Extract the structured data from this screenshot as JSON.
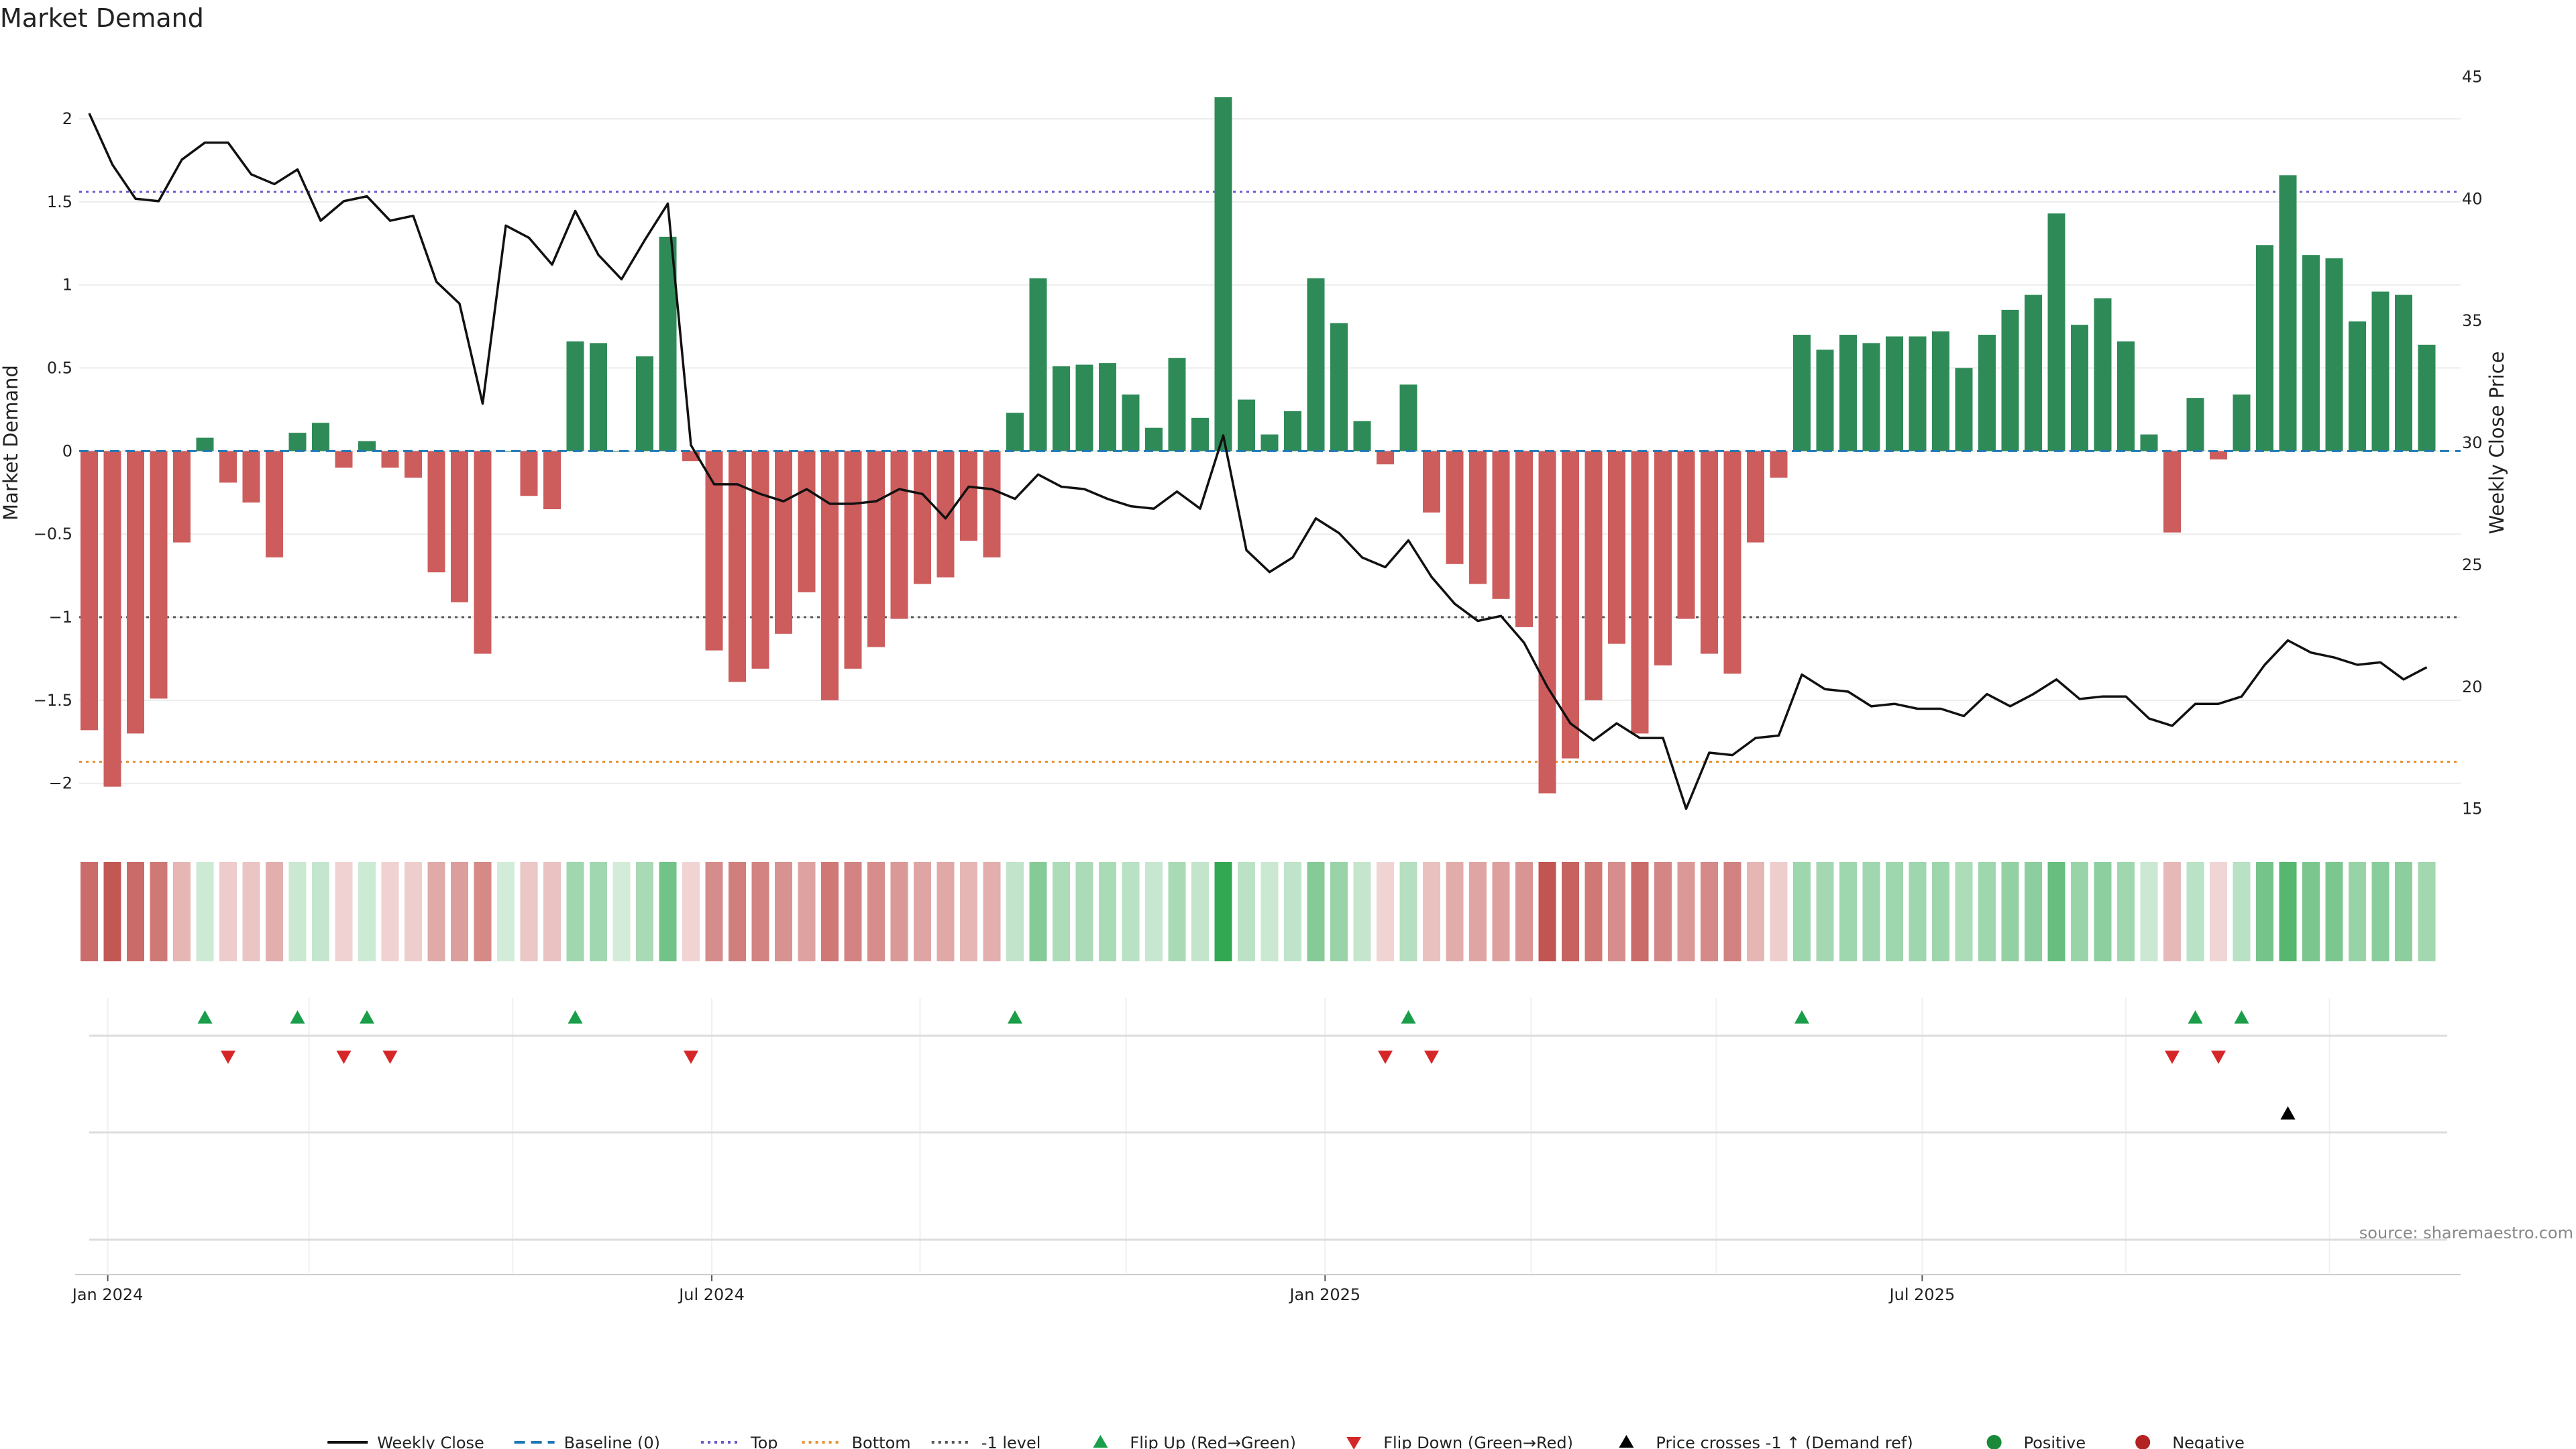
{
  "chart_data": {
    "type": "bar",
    "title": "Market Demand",
    "ylabel_left": "Market Demand",
    "ylabel_right": "Weekly Close Price",
    "ylim_left": [
      -2.3,
      2.4
    ],
    "ylim_right": [
      14,
      46
    ],
    "yticks_left": [
      2,
      1.5,
      1,
      0.5,
      0,
      -0.5,
      -1,
      -1.5,
      -2
    ],
    "yticks_left_labels": [
      "2",
      "1.5",
      "1",
      "0.5",
      "0",
      "−0.5",
      "−1",
      "−1.5",
      "−2"
    ],
    "yticks_right": [
      45,
      40,
      35,
      30,
      25,
      20,
      15
    ],
    "yticks_right_labels": [
      "45",
      "40",
      "35",
      "30",
      "25",
      "20",
      "15"
    ],
    "x_tick_labels": [
      "Jan 2024",
      "Jul 2024",
      "Jan 2025",
      "Jul 2025"
    ],
    "levels": {
      "top": 1.56,
      "bottom": -1.87,
      "minus_one": -1.0,
      "baseline": 0
    },
    "demand": [
      -1.68,
      -2.02,
      -1.7,
      -1.49,
      -0.55,
      0.08,
      -0.19,
      -0.31,
      -0.64,
      0.11,
      0.17,
      -0.1,
      0.06,
      -0.1,
      -0.16,
      -0.73,
      -0.91,
      -1.22,
      0.0,
      -0.27,
      -0.35,
      0.66,
      0.65,
      0.0,
      0.57,
      1.29,
      -0.06,
      -1.2,
      -1.39,
      -1.31,
      -1.1,
      -0.85,
      -1.5,
      -1.31,
      -1.18,
      -1.01,
      -0.8,
      -0.76,
      -0.54,
      -0.64,
      0.23,
      1.04,
      0.51,
      0.52,
      0.53,
      0.34,
      0.14,
      0.56,
      0.2,
      2.13,
      0.31,
      0.1,
      0.24,
      1.04,
      0.77,
      0.18,
      -0.08,
      0.4,
      -0.37,
      -0.68,
      -0.8,
      -0.89,
      -1.06,
      -2.06,
      -1.85,
      -1.5,
      -1.16,
      -1.7,
      -1.29,
      -1.01,
      -1.22,
      -1.34,
      -0.55,
      -0.16,
      0.7,
      0.61,
      0.7,
      0.65,
      0.69,
      0.69,
      0.72,
      0.5,
      0.7,
      0.85,
      0.94,
      1.43,
      0.76,
      0.92,
      0.66,
      0.1,
      -0.49,
      0.32,
      -0.05,
      0.34,
      1.24,
      1.66,
      1.18,
      1.16,
      0.78,
      0.96,
      0.94,
      0.64
    ],
    "weekly_close": [
      43.5,
      41.4,
      40.0,
      39.9,
      41.6,
      42.3,
      42.3,
      41.0,
      40.6,
      41.2,
      39.1,
      39.9,
      40.1,
      39.1,
      39.3,
      36.6,
      35.7,
      31.6,
      38.9,
      38.4,
      37.3,
      39.5,
      37.7,
      36.7,
      38.3,
      39.8,
      29.9,
      28.3,
      28.3,
      27.9,
      27.6,
      28.1,
      27.5,
      27.5,
      27.6,
      28.1,
      27.9,
      26.9,
      28.2,
      28.1,
      27.7,
      28.7,
      28.2,
      28.1,
      27.7,
      27.4,
      27.3,
      28.0,
      27.3,
      30.3,
      25.6,
      24.7,
      25.3,
      26.9,
      26.3,
      25.3,
      24.9,
      26.0,
      24.5,
      23.4,
      22.7,
      22.9,
      21.8,
      20.0,
      18.5,
      17.8,
      18.5,
      17.9,
      17.9,
      15.0,
      17.3,
      17.2,
      17.9,
      18.0,
      20.5,
      19.9,
      19.8,
      19.2,
      19.3,
      19.1,
      19.1,
      18.8,
      19.7,
      19.2,
      19.7,
      20.3,
      19.5,
      19.6,
      19.6,
      18.7,
      18.4,
      19.3,
      19.3,
      19.6,
      20.9,
      21.9,
      21.4,
      21.2,
      20.9,
      21.0,
      20.3,
      20.8
    ],
    "flip_up_indices": [
      5,
      9,
      12,
      21,
      40,
      57,
      74,
      91,
      93
    ],
    "flip_down_indices": [
      6,
      11,
      13,
      26,
      56,
      58,
      90,
      92
    ],
    "price_cross_indices": [
      95
    ],
    "legend": [
      {
        "label": "Weekly Close",
        "symbol": "line",
        "color": "#111111"
      },
      {
        "label": "Baseline (0)",
        "symbol": "dash",
        "color": "#1f77b4"
      },
      {
        "label": "Top",
        "symbol": "dot",
        "color": "#6a5acd"
      },
      {
        "label": "Bottom",
        "symbol": "dot",
        "color": "#e6922e"
      },
      {
        "label": "-1 level",
        "symbol": "dot",
        "color": "#555555"
      },
      {
        "label": "Flip Up (Red→Green)",
        "symbol": "tri-up",
        "color": "#1a9e4a"
      },
      {
        "label": "Flip Down (Green→Red)",
        "symbol": "tri-down",
        "color": "#d62728"
      },
      {
        "label": "Price crosses -1 ↑ (Demand ref)",
        "symbol": "tri-up",
        "color": "#000000"
      },
      {
        "label": "Positive",
        "symbol": "circle",
        "color": "#1a8a3a"
      },
      {
        "label": "Negative",
        "symbol": "circle",
        "color": "#b22222"
      }
    ],
    "colors": {
      "positive": "#2e8b57",
      "negative": "#cd5c5c",
      "heat_positive": "#33a852",
      "heat_negative": "#c0504d"
    },
    "grid": true,
    "legend_position": "bottom-center"
  },
  "source_text": "source: sharemaestro.com"
}
